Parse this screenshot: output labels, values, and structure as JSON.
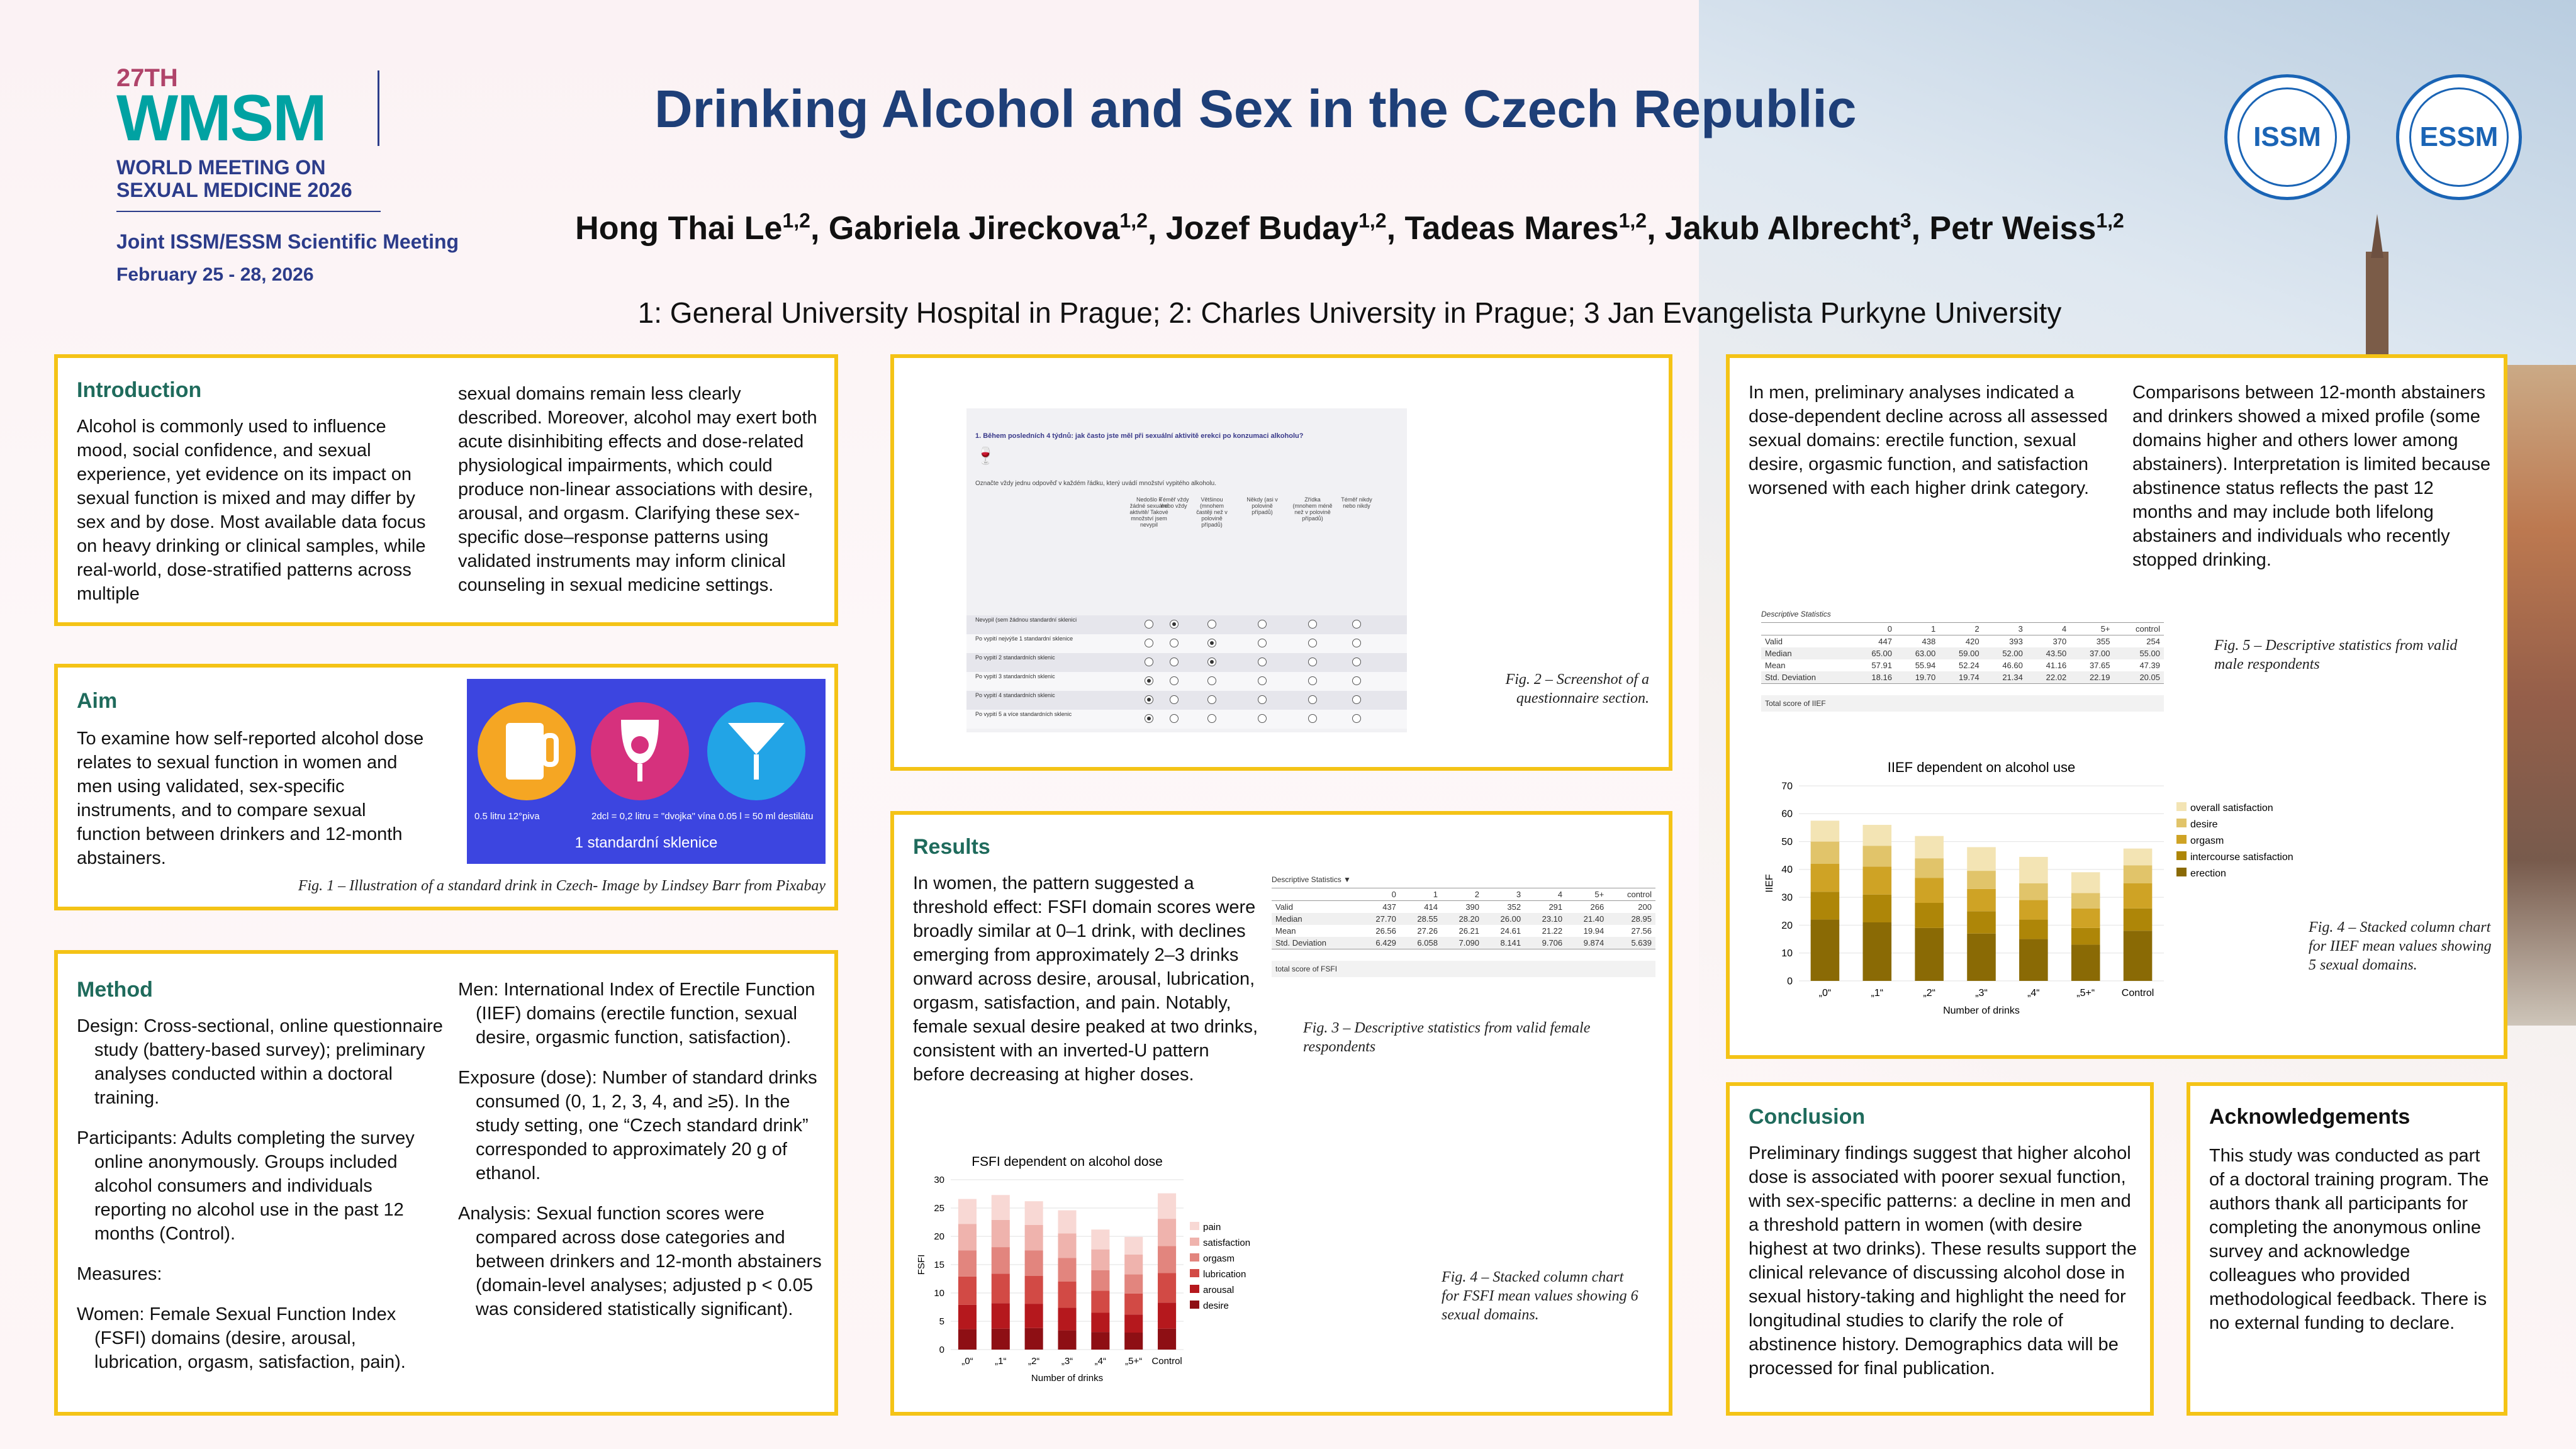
{
  "header": {
    "logo": {
      "edition": "27TH",
      "wordmark": "WMSM",
      "line1": "WORLD MEETING ON",
      "line2": "SEXUAL MEDICINE 2026",
      "joint": "Joint ISSM/ESSM Scientific Meeting",
      "date": "February 25 - 28, 2026"
    },
    "title": "Drinking Alcohol and Sex in the Czech Republic",
    "authors": [
      {
        "name": "Hong Thai Le",
        "sup": "1,2"
      },
      {
        "name": "Gabriela Jireckova",
        "sup": "1,2"
      },
      {
        "name": "Jozef Buday",
        "sup": "1,2"
      },
      {
        "name": "Tadeas Mares",
        "sup": "1,2"
      },
      {
        "name": "Jakub Albrecht",
        "sup": "3"
      },
      {
        "name": "Petr Weiss",
        "sup": "1,2"
      }
    ],
    "affiliations": "1: General University Hospital in Prague; 2: Charles University in Prague; 3 Jan Evangelista Purkyne University",
    "seal_issm": "ISSM",
    "seal_essm": "ESSM"
  },
  "introduction": {
    "heading": "Introduction",
    "col1": "Alcohol is commonly used to influence mood, social confidence, and sexual experience, yet evidence on its impact on sexual function is mixed and may differ by sex and by dose. Most available data focus on heavy drinking or clinical samples, while real-world, dose-stratified patterns across multiple",
    "col2": "sexual domains remain less clearly described. Moreover, alcohol may exert both acute disinhibiting effects and dose-related physiological impairments, which could produce non-linear associations with desire, arousal, and orgasm. Clarifying these sex-specific dose–response patterns using validated instruments may inform clinical counseling in sexual medicine settings."
  },
  "aim": {
    "heading": "Aim",
    "text": "To examine how self-reported alcohol dose relates to sexual function in women and men using validated, sex-specific instruments, and to compare sexual function between drinkers and 12-month abstainers.",
    "fig_labels": [
      "0.5 litru 12°piva",
      "2dcl = 0,2 litru = \"dvojka\" vína",
      "0.05 l = 50 ml destilátu"
    ],
    "fig_title": "1 standardní sklenice",
    "caption": "Fig. 1 – Illustration of a standard drink in Czech- Image by Lindsey Barr from Pixabay"
  },
  "method": {
    "heading": "Method",
    "col1": [
      "Design: Cross-sectional, online questionnaire study (battery-based survey); preliminary analyses conducted within a doctoral training.",
      "Participants: Adults completing the survey online anonymously. Groups included alcohol consumers and individuals reporting no alcohol use in the past 12 months (Control).",
      "Measures:",
      "Women: Female Sexual Function Index (FSFI) domains (desire, arousal, lubrication, orgasm, satisfaction, pain)."
    ],
    "col2": [
      "Men: International Index of Erectile Function (IIEF) domains (erectile function, sexual desire, orgasmic function, satisfaction).",
      "Exposure (dose): Number of standard drinks consumed (0, 1, 2, 3, 4, and ≥5). In the study setting, one “Czech standard drink” corresponded to approximately 20 g of ethanol.",
      "Analysis: Sexual function scores were compared across dose categories and between drinkers and 12-month abstainers (domain-level analyses; adjusted p < 0.05 was considered statistically significant)."
    ]
  },
  "questionnaire": {
    "question": "1. Během posledních 4 týdnů: jak často jste měl při sexuální aktivitě erekci po konzumaci alkoholu?",
    "instruction": "Označte vždy jednu odpověď v každém řádku, který uvádí množství vypitého alkoholu.",
    "columns": [
      "Nedošlo k žádné sexuální aktivitě/ Takové množství jsem nevypil",
      "Téměř vždy nebo vždy",
      "Většinou (mnohem častěji než v polovině případů)",
      "Někdy (asi v polovině případů)",
      "Zřídka (mnohem méně než v polovině případů)",
      "Téměř nikdy nebo nikdy"
    ],
    "rows": [
      "Nevypil (sem žádnou standardní sklenici",
      "Po vypití nejvýše 1 standardní sklenice",
      "Po vypití 2 standardních sklenic",
      "Po vypití 3 standardních sklenic",
      "Po vypití 4 standardních sklenic",
      "Po vypití 5 a více standardních sklenic"
    ],
    "selected": [
      1,
      2,
      2,
      0,
      0,
      0
    ],
    "caption": "Fig. 2 – Screenshot of a questionnaire section."
  },
  "results": {
    "heading": "Results",
    "text": "In women, the pattern suggested a threshold effect: FSFI domain scores were broadly similar at 0–1 drink, with declines emerging from approximately 2–3 drinks onward across desire, arousal, lubrication, orgasm, satisfaction, and pain. Notably, female sexual desire peaked at two drinks, consistent with an inverted-U pattern before decreasing at higher doses.",
    "table": {
      "title": "Descriptive Statistics ▼",
      "cols": [
        "",
        "0",
        "1",
        "2",
        "3",
        "4",
        "5+",
        "control"
      ],
      "rows": [
        [
          "Valid",
          "437",
          "414",
          "390",
          "352",
          "291",
          "266",
          "200"
        ],
        [
          "Median",
          "27.70",
          "28.55",
          "28.20",
          "26.00",
          "23.10",
          "21.40",
          "28.95"
        ],
        [
          "Mean",
          "26.56",
          "27.26",
          "26.21",
          "24.61",
          "21.22",
          "19.94",
          "27.56"
        ],
        [
          "Std. Deviation",
          "6.429",
          "6.058",
          "7.090",
          "8.141",
          "9.706",
          "9.874",
          "5.639"
        ]
      ],
      "footer": "total score of FSFI"
    },
    "caption_table": "Fig. 3 – Descriptive statistics from valid female respondents",
    "caption_chart": "Fig. 4 – Stacked column chart for FSFI mean values showing 6 sexual domains."
  },
  "men": {
    "col1": "In men, preliminary analyses indicated a dose-dependent decline across all assessed sexual domains: erectile function, sexual desire, orgasmic function, and satisfaction worsened with each higher drink category.",
    "col2": "Comparisons between 12-month abstainers and drinkers showed a mixed profile (some domains higher and others lower among abstainers). Interpretation is limited because abstinence status reflects the past 12 months and may include both lifelong abstainers and individuals who recently stopped drinking.",
    "table": {
      "title": "Descriptive Statistics",
      "cols": [
        "",
        "0",
        "1",
        "2",
        "3",
        "4",
        "5+",
        "control"
      ],
      "rows": [
        [
          "Valid",
          "447",
          "438",
          "420",
          "393",
          "370",
          "355",
          "254"
        ],
        [
          "Median",
          "65.00",
          "63.00",
          "59.00",
          "52.00",
          "43.50",
          "37.00",
          "55.00"
        ],
        [
          "Mean",
          "57.91",
          "55.94",
          "52.24",
          "46.60",
          "41.16",
          "37.65",
          "47.39"
        ],
        [
          "Std. Deviation",
          "18.16",
          "19.70",
          "19.74",
          "21.34",
          "22.02",
          "22.19",
          "20.05"
        ]
      ],
      "footer": "Total score of IIEF"
    },
    "caption_table": "Fig. 5 – Descriptive statistics from valid male respondents",
    "caption_chart": "Fig. 4 – Stacked column chart for IIEF mean values showing 5 sexual domains."
  },
  "conclusion": {
    "heading": "Conclusion",
    "text": "Preliminary findings suggest that higher alcohol dose is associated with poorer sexual function, with sex-specific patterns: a decline in men and a threshold pattern in women (with desire highest at two drinks). These results support the clinical relevance of discussing alcohol dose in sexual history-taking and highlight the need for longitudinal studies to clarify the role of abstinence history. Demographics data will be processed for final publication."
  },
  "acknowledgements": {
    "heading": "Acknowledgements",
    "text": "This study was conducted as part of a doctoral training program. The authors thank all participants for completing the anonymous online survey and acknowledge colleagues who provided methodological feedback. There is no external funding to declare."
  },
  "chart_data": [
    {
      "type": "bar",
      "stacked": true,
      "title": "FSFI dependent on alcohol dose",
      "xlabel": "Number of drinks",
      "ylabel": "FSFI",
      "categories": [
        "„0“",
        "„1“",
        "„2“",
        "„3“",
        "„4“",
        "„5+“",
        "Control"
      ],
      "ylim": [
        0,
        30
      ],
      "yticks": [
        0,
        5,
        10,
        15,
        20,
        25,
        30
      ],
      "legend_position": "right",
      "series": [
        {
          "name": "desire",
          "color": "#8e0f14",
          "values": [
            3.6,
            3.7,
            3.8,
            3.4,
            3.1,
            3.0,
            3.7
          ]
        },
        {
          "name": "arousal",
          "color": "#b5181d",
          "values": [
            4.3,
            4.5,
            4.3,
            4.0,
            3.4,
            3.2,
            4.6
          ]
        },
        {
          "name": "lubrication",
          "color": "#d24a45",
          "values": [
            5.0,
            5.2,
            4.9,
            4.6,
            3.9,
            3.7,
            5.2
          ]
        },
        {
          "name": "orgasm",
          "color": "#e2857e",
          "values": [
            4.6,
            4.7,
            4.5,
            4.2,
            3.6,
            3.4,
            4.8
          ]
        },
        {
          "name": "satisfaction",
          "color": "#efb3ad",
          "values": [
            4.7,
            4.8,
            4.5,
            4.3,
            3.7,
            3.5,
            4.8
          ]
        },
        {
          "name": "pain",
          "color": "#f8d8d4",
          "values": [
            4.4,
            4.4,
            4.2,
            4.1,
            3.5,
            3.1,
            4.5
          ]
        }
      ]
    },
    {
      "type": "bar",
      "stacked": true,
      "title": "IIEF dependent on alcohol use",
      "xlabel": "Number of drinks",
      "ylabel": "IIEF",
      "categories": [
        "„0“",
        "„1“",
        "„2“",
        "„3“",
        "„4“",
        "„5+“",
        "Control"
      ],
      "ylim": [
        0,
        70
      ],
      "yticks": [
        0,
        10,
        20,
        30,
        40,
        50,
        60,
        70
      ],
      "legend_position": "right",
      "series": [
        {
          "name": "erection",
          "color": "#8a6a05",
          "values": [
            22,
            21,
            19,
            17,
            15,
            13,
            18
          ]
        },
        {
          "name": "intercourse satisfaction",
          "color": "#ae8608",
          "values": [
            10,
            10,
            9,
            8,
            7,
            6,
            8
          ]
        },
        {
          "name": "orgasm",
          "color": "#cfa325",
          "values": [
            10,
            10,
            9,
            8,
            7,
            7,
            9
          ]
        },
        {
          "name": "desire",
          "color": "#e1c46a",
          "values": [
            8,
            7.5,
            7,
            6.5,
            6,
            5.5,
            6.5
          ]
        },
        {
          "name": "overall satisfaction",
          "color": "#f3e4b4",
          "values": [
            7.5,
            7.5,
            8,
            8.5,
            9.5,
            7.5,
            6
          ]
        }
      ]
    }
  ]
}
